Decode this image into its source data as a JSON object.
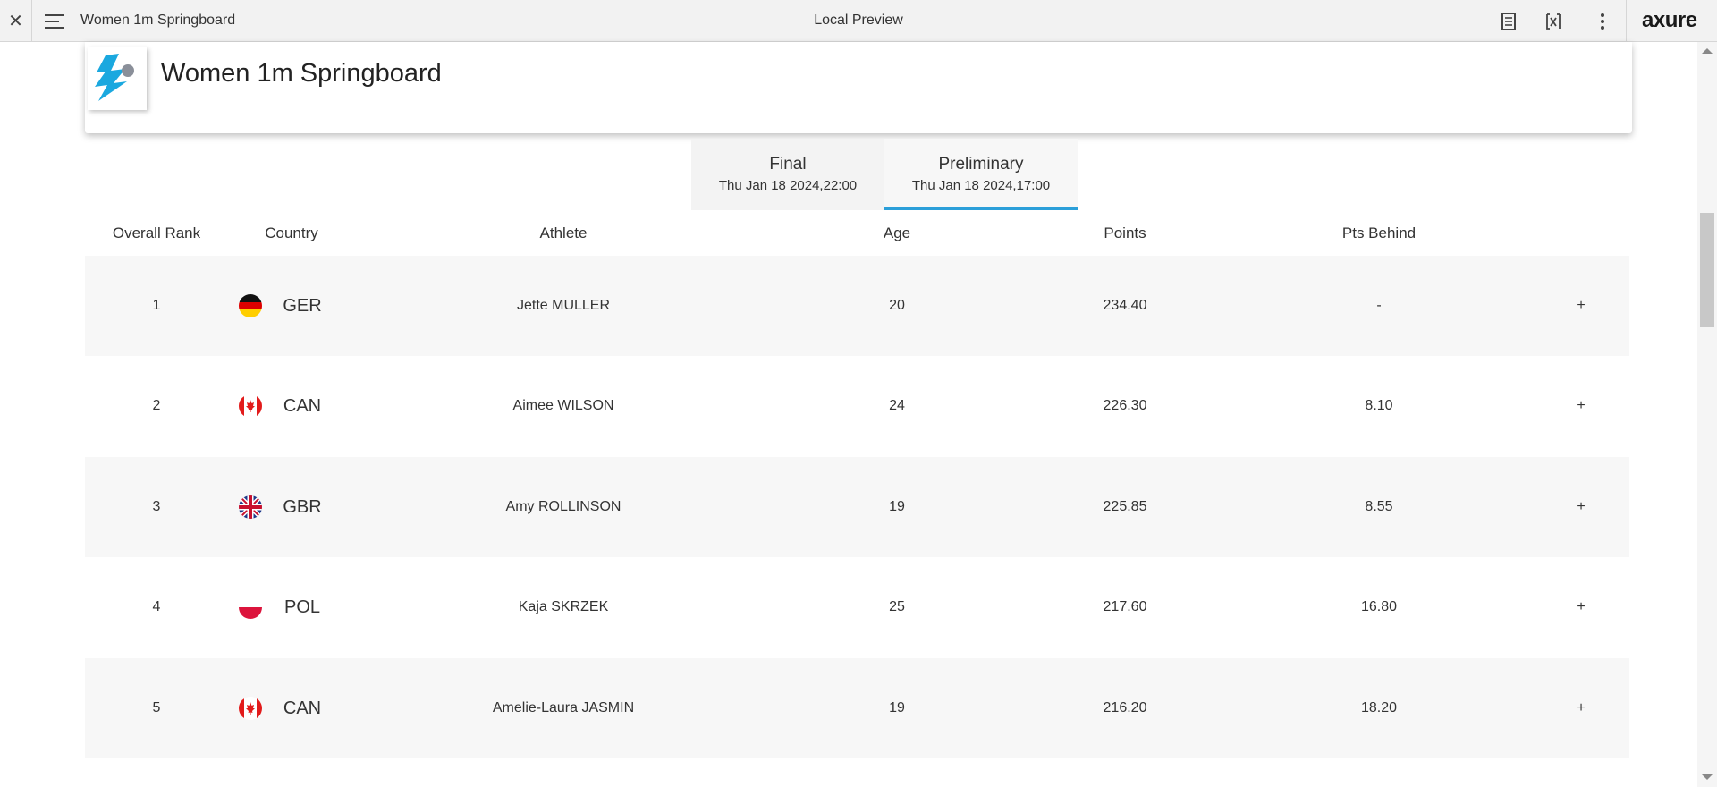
{
  "topbar": {
    "page_name": "Women 1m Springboard",
    "center_title": "Local Preview",
    "logo_text": "axure",
    "icons": [
      "close-icon",
      "menu-icon",
      "notes-icon",
      "variables-icon",
      "more-icon"
    ]
  },
  "header": {
    "event_title": "Women 1m Springboard",
    "logo_icon": "diving-icon",
    "brand_color": "#1aa8df"
  },
  "tabs": [
    {
      "label": "Final",
      "date": "Thu Jan 18 2024,22:00",
      "active": false
    },
    {
      "label": "Preliminary",
      "date": "Thu Jan 18 2024,17:00",
      "active": true
    }
  ],
  "accent_color": "#2b9fd9",
  "table": {
    "columns": [
      "Overall Rank",
      "Country",
      "Athlete",
      "Age",
      "Points",
      "Pts Behind"
    ],
    "rows": [
      {
        "rank": "1",
        "flag": "germany-flag-icon",
        "country": "GER",
        "athlete": "Jette MULLER",
        "age": "20",
        "points": "234.40",
        "behind": "-",
        "expand": "+"
      },
      {
        "rank": "2",
        "flag": "canada-flag-icon",
        "country": "CAN",
        "athlete": "Aimee WILSON",
        "age": "24",
        "points": "226.30",
        "behind": "8.10",
        "expand": "+"
      },
      {
        "rank": "3",
        "flag": "uk-flag-icon",
        "country": "GBR",
        "athlete": "Amy ROLLINSON",
        "age": "19",
        "points": "225.85",
        "behind": "8.55",
        "expand": "+"
      },
      {
        "rank": "4",
        "flag": "poland-flag-icon",
        "country": "POL",
        "athlete": "Kaja SKRZEK",
        "age": "25",
        "points": "217.60",
        "behind": "16.80",
        "expand": "+"
      },
      {
        "rank": "5",
        "flag": "canada-flag-icon",
        "country": "CAN",
        "athlete": "Amelie-Laura JASMIN",
        "age": "19",
        "points": "216.20",
        "behind": "18.20",
        "expand": "+"
      }
    ]
  }
}
